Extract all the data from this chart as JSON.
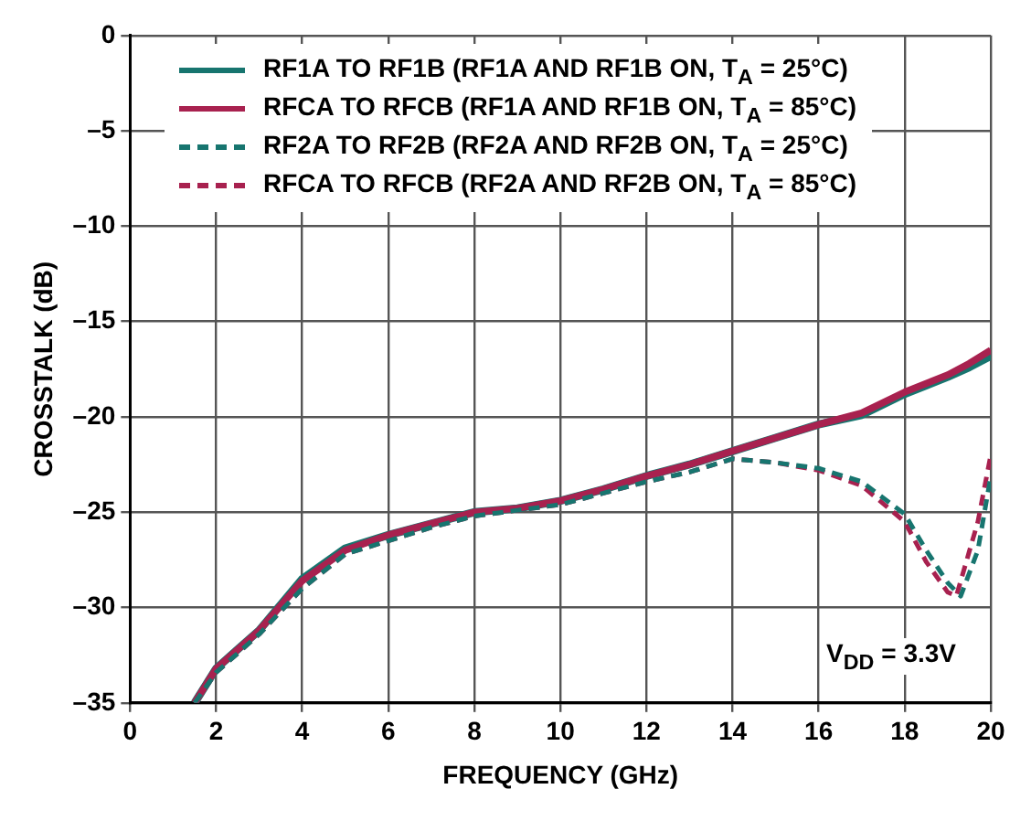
{
  "chart_data": {
    "type": "line",
    "xlabel": "FREQUENCY (GHz)",
    "ylabel": "CROSSTALK (dB)",
    "xlim": [
      0,
      20
    ],
    "xticks": [
      0,
      2,
      4,
      6,
      8,
      10,
      12,
      14,
      16,
      18,
      20
    ],
    "ylim": [
      -35,
      0
    ],
    "yticks": [
      {
        "value": -35,
        "label": "–35"
      },
      {
        "value": -30,
        "label": "–30"
      },
      {
        "value": -25,
        "label": "–25"
      },
      {
        "value": -20,
        "label": "–20"
      },
      {
        "value": -15,
        "label": "–15"
      },
      {
        "value": -10,
        "label": "–10"
      },
      {
        "value": -5,
        "label": "–5"
      },
      0
    ],
    "grid": true,
    "legend": "top left",
    "marker": "none",
    "annotations": [
      "V$_{DD}$ = 3.3V"
    ],
    "series": [
      {
        "name": "RF1A TO RF1B (RF1A AND RF1B ON, T$_{A}$ = 25°C)",
        "color": "#17756f",
        "line_style": "solid",
        "x": [
          1.5,
          2,
          3,
          4,
          5,
          6,
          7,
          8,
          9,
          10,
          11,
          12,
          13,
          14,
          15,
          16,
          17,
          18,
          19,
          19.5,
          20
        ],
        "values": [
          -35,
          -33.2,
          -31.2,
          -28.5,
          -26.9,
          -26.2,
          -25.6,
          -25.0,
          -24.8,
          -24.4,
          -23.8,
          -23.1,
          -22.5,
          -21.8,
          -21.1,
          -20.4,
          -19.9,
          -18.8,
          -17.9,
          -17.4,
          -16.8
        ]
      },
      {
        "name": "RFCA TO RFCB (RF1A AND RF1B ON, T$_{A}$ = 85°C)",
        "color": "#a8214f",
        "line_style": "solid",
        "x": [
          1.5,
          2,
          3,
          4,
          5,
          6,
          7,
          8,
          9,
          10,
          11,
          12,
          13,
          14,
          15,
          16,
          17,
          18,
          19,
          19.5,
          20
        ],
        "values": [
          -35,
          -33.2,
          -31.2,
          -28.6,
          -27.0,
          -26.2,
          -25.6,
          -25.0,
          -24.8,
          -24.4,
          -23.8,
          -23.1,
          -22.5,
          -21.8,
          -21.1,
          -20.4,
          -19.8,
          -18.7,
          -17.8,
          -17.2,
          -16.5
        ]
      },
      {
        "name": "RF2A TO RF2B (RF2A AND RF2B ON, T$_{A}$ = 25°C)",
        "color": "#17756f",
        "line_style": "dashed",
        "x": [
          1.5,
          2,
          3,
          4,
          5,
          6,
          7,
          8,
          9,
          10,
          11,
          12,
          13,
          14,
          15,
          16,
          17,
          18,
          18.5,
          19,
          19.3,
          19.7,
          20
        ],
        "values": [
          -35,
          -33.4,
          -31.4,
          -29.0,
          -27.2,
          -26.5,
          -25.8,
          -25.2,
          -24.9,
          -24.6,
          -24.0,
          -23.4,
          -22.9,
          -22.2,
          -22.4,
          -22.7,
          -23.4,
          -25.1,
          -27.0,
          -28.7,
          -29.4,
          -27.0,
          -23.1
        ]
      },
      {
        "name": "RFCA TO RFCB (RF2A AND RF2B ON, T$_{A}$ = 85°C)",
        "color": "#a8214f",
        "line_style": "dashed",
        "x": [
          1.5,
          2,
          3,
          4,
          5,
          6,
          7,
          8,
          9,
          10,
          11,
          12,
          13,
          14,
          15,
          16,
          17,
          18,
          18.5,
          19,
          19.2,
          19.7,
          20
        ],
        "values": [
          -35,
          -33.4,
          -31.4,
          -29.0,
          -27.2,
          -26.5,
          -25.8,
          -25.2,
          -24.9,
          -24.6,
          -24.0,
          -23.4,
          -22.9,
          -22.2,
          -22.4,
          -22.8,
          -23.6,
          -25.5,
          -27.6,
          -29.2,
          -29.4,
          -25.5,
          -22.0
        ]
      }
    ]
  }
}
